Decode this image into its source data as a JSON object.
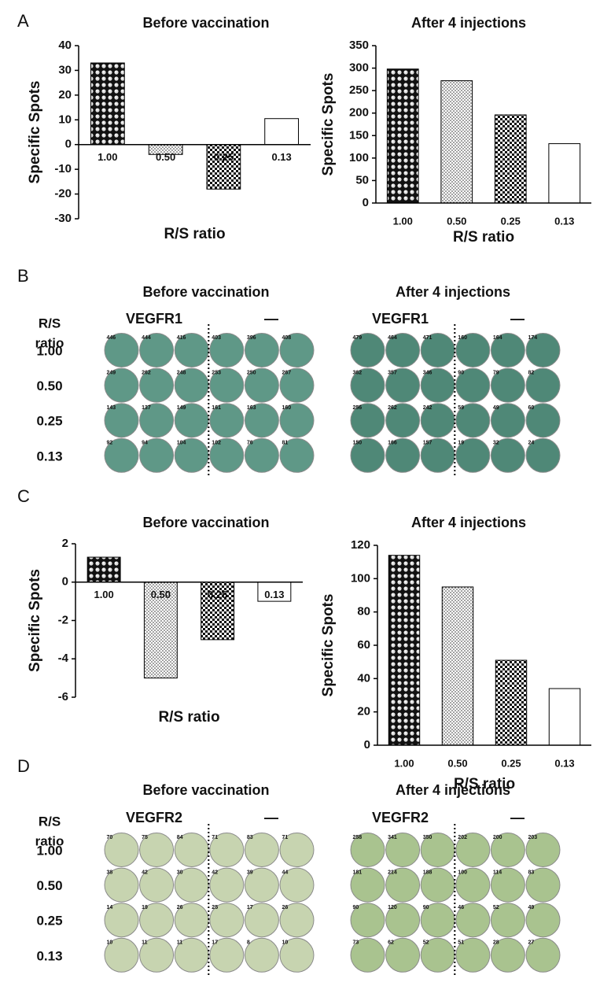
{
  "panel_labels": [
    "A",
    "B",
    "C",
    "D"
  ],
  "chart_data": [
    {
      "type": "bar",
      "title": "Before vaccination",
      "y_label": "Specific Spots",
      "x_label": "R/S ratio",
      "categories": [
        "1.00",
        "0.50",
        "0.25",
        "0.13"
      ],
      "values": [
        33,
        -4,
        -18,
        10.5
      ],
      "patterns": [
        "spheres",
        "stipple",
        "checker",
        "none"
      ],
      "ylim": [
        -30,
        40
      ],
      "yticks": [
        -30,
        -20,
        -10,
        0,
        10,
        20,
        30,
        40
      ],
      "grid": false
    },
    {
      "type": "bar",
      "title": "After 4 injections",
      "y_label": "Specific Spots",
      "x_label": "R/S ratio",
      "categories": [
        "1.00",
        "0.50",
        "0.25",
        "0.13"
      ],
      "values": [
        298,
        272,
        196,
        132
      ],
      "patterns": [
        "spheres",
        "stipple",
        "checker",
        "none"
      ],
      "ylim": [
        0,
        350
      ],
      "yticks": [
        0,
        50,
        100,
        150,
        200,
        250,
        300,
        350
      ],
      "grid": false
    },
    {
      "type": "bar",
      "title": "Before vaccination",
      "y_label": "Specific Spots",
      "x_label": "R/S ratio",
      "categories": [
        "1.00",
        "0.50",
        "0.25",
        "0.13"
      ],
      "values": [
        1.3,
        -5,
        -3,
        -1
      ],
      "patterns": [
        "spheres",
        "stipple",
        "checker",
        "none"
      ],
      "ylim": [
        -6,
        2
      ],
      "yticks": [
        -6,
        -4,
        -2,
        0,
        2
      ],
      "grid": false
    },
    {
      "type": "bar",
      "title": "After 4 injections",
      "y_label": "Specific Spots",
      "x_label": "R/S ratio",
      "categories": [
        "1.00",
        "0.50",
        "0.25",
        "0.13"
      ],
      "values": [
        114,
        95,
        51,
        34
      ],
      "patterns": [
        "spheres",
        "stipple",
        "checker",
        "none"
      ],
      "ylim": [
        0,
        120
      ],
      "yticks": [
        0,
        20,
        40,
        60,
        80,
        100,
        120
      ],
      "grid": false
    }
  ],
  "well_panels": [
    {
      "row_header": [
        "R/S",
        "ratio"
      ],
      "row_labels": [
        "1.00",
        "0.50",
        "0.25",
        "0.13"
      ],
      "plates": [
        {
          "title": "Before vaccination",
          "columns": [
            "VEGFR1",
            "—"
          ],
          "color": "#5f9887",
          "counts": [
            [
              446,
              444,
              416,
              403,
              396,
              408
            ],
            [
              249,
              262,
              248,
              253,
              250,
              267
            ],
            [
              143,
              137,
              149,
              161,
              163,
              160
            ],
            [
              92,
              94,
              104,
              102,
              76,
              81
            ]
          ]
        },
        {
          "title": "After 4 injections",
          "columns": [
            "VEGFR1",
            "—"
          ],
          "color": "#4f8877",
          "counts": [
            [
              479,
              464,
              471,
              160,
              164,
              174
            ],
            [
              362,
              357,
              346,
              90,
              79,
              82
            ],
            [
              256,
              262,
              242,
              59,
              49,
              60
            ],
            [
              150,
              166,
              157,
              19,
              32,
              24
            ]
          ]
        }
      ]
    },
    {
      "row_header": [
        "R/S",
        "ratio"
      ],
      "row_labels": [
        "1.00",
        "0.50",
        "0.25",
        "0.13"
      ],
      "plates": [
        {
          "title": "Before vaccination",
          "columns": [
            "VEGFR2",
            "—"
          ],
          "color": "#c7d4b0",
          "counts": [
            [
              70,
              75,
              84,
              71,
              83,
              71
            ],
            [
              38,
              42,
              30,
              42,
              39,
              44
            ],
            [
              14,
              19,
              26,
              25,
              17,
              26
            ],
            [
              10,
              11,
              11,
              17,
              8,
              10
            ]
          ]
        },
        {
          "title": "After 4 injections",
          "columns": [
            "VEGFR2",
            "—"
          ],
          "color": "#a9c38f",
          "counts": [
            [
              258,
              341,
              350,
              202,
              200,
              203
            ],
            [
              181,
              214,
              188,
              100,
              114,
              83
            ],
            [
              90,
              120,
              90,
              46,
              52,
              49
            ],
            [
              73,
              62,
              52,
              51,
              28,
              27
            ]
          ]
        }
      ]
    }
  ]
}
